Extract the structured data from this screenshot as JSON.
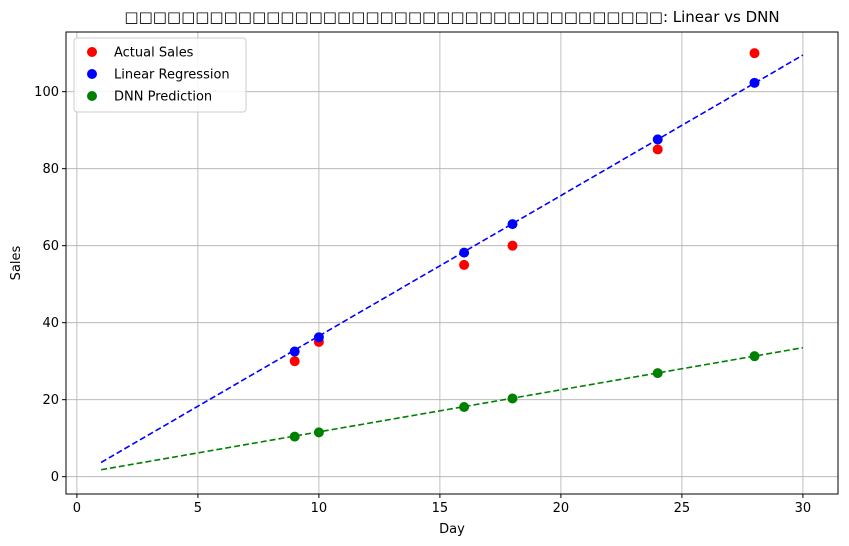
{
  "chart_data": {
    "type": "scatter",
    "title": "□□□□□□□□□□□□□□□□□□□□□□□□□□□□□□□□□□□□□□: Linear vs DNN",
    "xlabel": "Day",
    "ylabel": "Sales",
    "xlim": [
      -0.45,
      31.45
    ],
    "ylim": [
      -4.5,
      115.5
    ],
    "xticks": [
      0,
      5,
      10,
      15,
      20,
      25,
      30
    ],
    "yticks": [
      0,
      20,
      40,
      60,
      80,
      100
    ],
    "grid": true,
    "legend": "top-left",
    "series": [
      {
        "name": "Actual Sales",
        "kind": "points",
        "color": "#ff0000",
        "x": [
          9,
          10,
          16,
          18,
          24,
          28
        ],
        "y": [
          30,
          35,
          55,
          60,
          85,
          110
        ]
      },
      {
        "name": "Linear Regression",
        "kind": "points",
        "color": "#0000ff",
        "x": [
          9,
          10,
          16,
          18,
          24,
          28
        ],
        "y": [
          32.5,
          36.2,
          58.2,
          65.6,
          87.6,
          102.3
        ]
      },
      {
        "name": "DNN Prediction",
        "kind": "points",
        "color": "#008000",
        "x": [
          9,
          10,
          16,
          18,
          24,
          28
        ],
        "y": [
          10.4,
          11.5,
          18.1,
          20.3,
          26.9,
          31.3
        ]
      }
    ],
    "lines": [
      {
        "kind": "dashed-fit",
        "color": "#0000ff",
        "x": [
          1,
          30
        ],
        "y": [
          3.7,
          109.5
        ]
      },
      {
        "kind": "dashed-fit",
        "color": "#008000",
        "x": [
          1,
          30
        ],
        "y": [
          1.8,
          33.5
        ]
      }
    ]
  }
}
